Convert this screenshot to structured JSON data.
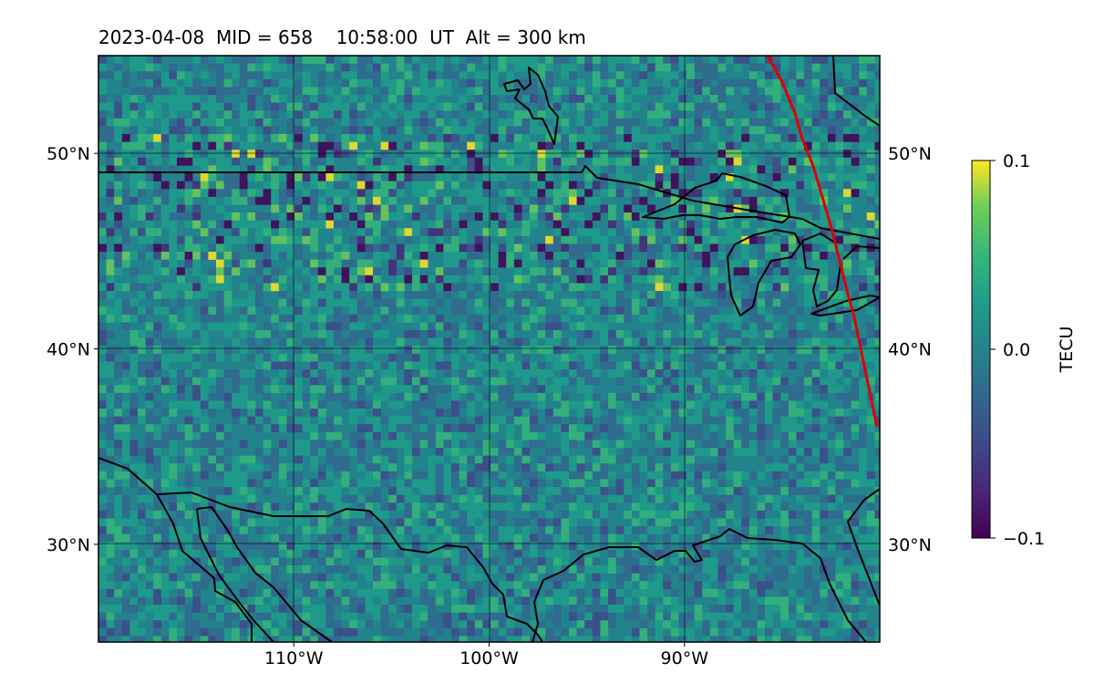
{
  "map": {
    "title": "2023-04-08  MID = 658    10:58:00  UT  Alt = 300 km",
    "date": "2023-04-08",
    "mid": 658,
    "time_ut": "10:58:00",
    "altitude_km": 300,
    "extent": {
      "lon": [
        -120,
        -80
      ],
      "lat": [
        25,
        55
      ]
    },
    "lat_ticks": [
      {
        "value": 30,
        "label": "30°N"
      },
      {
        "value": 40,
        "label": "40°N"
      },
      {
        "value": 50,
        "label": "50°N"
      }
    ],
    "lon_ticks": [
      {
        "value": -110,
        "label": "110°W"
      },
      {
        "value": -100,
        "label": "100°W"
      },
      {
        "value": -90,
        "label": "90°W"
      }
    ],
    "colorbar": {
      "label": "TECU",
      "colormap": "viridis",
      "range": [
        -0.1,
        0.1
      ],
      "ticks": [
        {
          "value": 0.1,
          "label": "0.1"
        },
        {
          "value": 0.0,
          "label": "0.0"
        },
        {
          "value": -0.1,
          "label": "−0.1"
        }
      ]
    },
    "eclipse_path_color": "#dd0000",
    "coastline_color": "#000000"
  }
}
